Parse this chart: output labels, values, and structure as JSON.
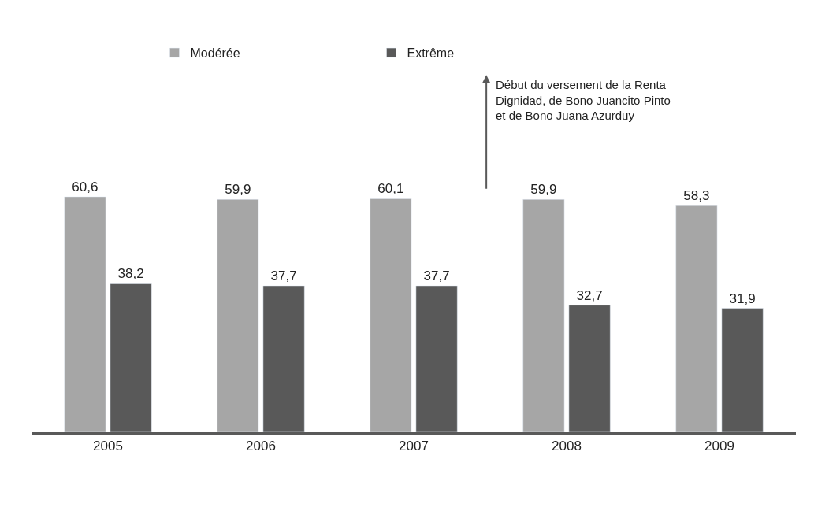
{
  "chart_data": {
    "type": "bar",
    "categories": [
      "2005",
      "2006",
      "2007",
      "2008",
      "2009"
    ],
    "series": [
      {
        "name": "Modérée",
        "color": "#a6a6a6",
        "values": [
          60.6,
          59.9,
          60.1,
          59.9,
          58.3
        ],
        "value_labels": [
          "60,6",
          "59,9",
          "60,1",
          "59,9",
          "58,3"
        ]
      },
      {
        "name": "Extrême",
        "color": "#595959",
        "values": [
          38.2,
          37.7,
          37.7,
          32.7,
          31.9
        ],
        "value_labels": [
          "38,2",
          "37,7",
          "37,7",
          "32,7",
          "31,9"
        ]
      }
    ],
    "annotations": [
      "Début du versement de la Renta\nDignidad, de Bono Juancito Pinto\net de Bono Juana Azurduy"
    ],
    "legend": "top"
  }
}
